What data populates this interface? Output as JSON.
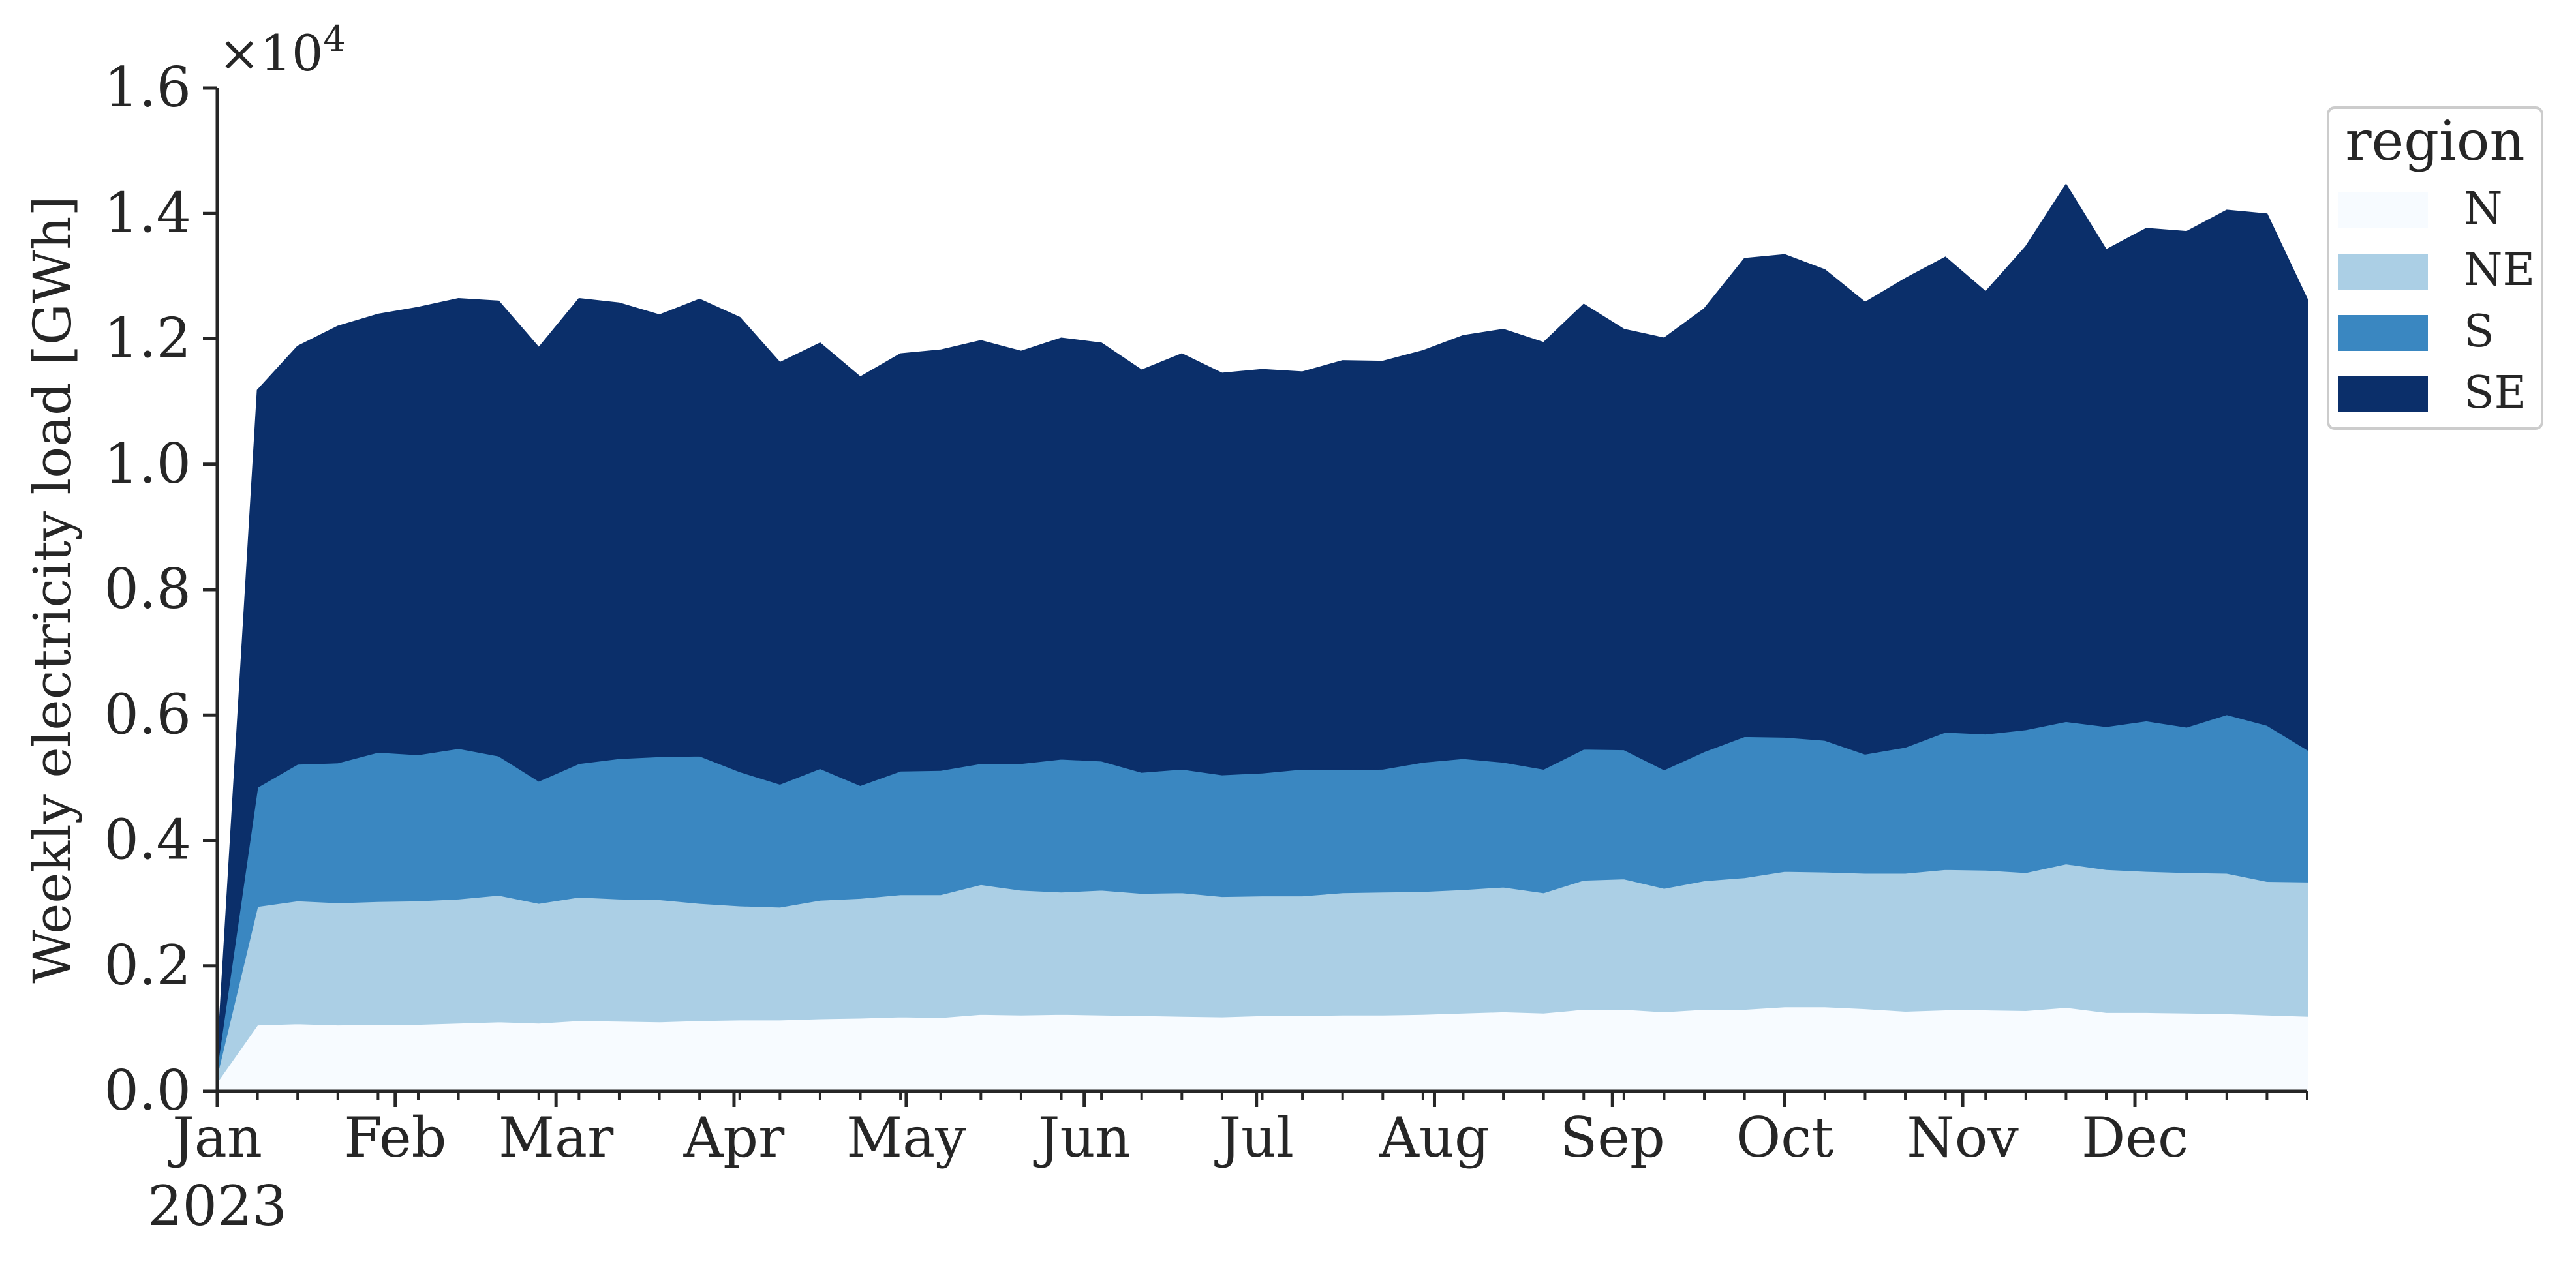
{
  "chart_data": {
    "type": "area",
    "stacked": true,
    "ylabel": "Weekly electricity load [GWh]",
    "y_multiplier": "×10",
    "y_multiplier_exponent": "4",
    "ylim": [
      0,
      1.6
    ],
    "yticks": [
      "0.0",
      "0.2",
      "0.4",
      "0.6",
      "0.8",
      "1.0",
      "1.2",
      "1.4",
      "1.6"
    ],
    "xlim": [
      "2023-01-01",
      "2023-12-31"
    ],
    "xtick_labels": [
      "Jan",
      "Feb",
      "Mar",
      "Apr",
      "May",
      "Jun",
      "Jul",
      "Aug",
      "Sep",
      "Oct",
      "Nov",
      "Dec"
    ],
    "xtick_year": "2023",
    "grid": false,
    "legend": {
      "title": "region",
      "position": "right, outside top"
    },
    "x": [
      "2023-01-01",
      "2023-01-08",
      "2023-01-15",
      "2023-01-22",
      "2023-01-29",
      "2023-02-05",
      "2023-02-12",
      "2023-02-19",
      "2023-02-26",
      "2023-03-05",
      "2023-03-12",
      "2023-03-19",
      "2023-03-26",
      "2023-04-02",
      "2023-04-09",
      "2023-04-16",
      "2023-04-23",
      "2023-04-30",
      "2023-05-07",
      "2023-05-14",
      "2023-05-21",
      "2023-05-28",
      "2023-06-04",
      "2023-06-11",
      "2023-06-18",
      "2023-06-25",
      "2023-07-02",
      "2023-07-09",
      "2023-07-16",
      "2023-07-23",
      "2023-07-30",
      "2023-08-06",
      "2023-08-13",
      "2023-08-20",
      "2023-08-27",
      "2023-09-03",
      "2023-09-10",
      "2023-09-17",
      "2023-09-24",
      "2023-10-01",
      "2023-10-08",
      "2023-10-15",
      "2023-10-22",
      "2023-10-29",
      "2023-11-05",
      "2023-11-12",
      "2023-11-19",
      "2023-11-26",
      "2023-12-03",
      "2023-12-10",
      "2023-12-17",
      "2023-12-24",
      "2023-12-31"
    ],
    "series": [
      {
        "name": "N",
        "color": "#f7fbff",
        "values": [
          0.015,
          0.106,
          0.108,
          0.106,
          0.107,
          0.107,
          0.109,
          0.111,
          0.109,
          0.113,
          0.112,
          0.111,
          0.113,
          0.114,
          0.114,
          0.116,
          0.117,
          0.119,
          0.118,
          0.123,
          0.122,
          0.123,
          0.122,
          0.121,
          0.12,
          0.119,
          0.121,
          0.121,
          0.122,
          0.122,
          0.123,
          0.125,
          0.127,
          0.125,
          0.131,
          0.131,
          0.127,
          0.131,
          0.131,
          0.135,
          0.135,
          0.132,
          0.128,
          0.13,
          0.13,
          0.129,
          0.134,
          0.126,
          0.126,
          0.125,
          0.124,
          0.122,
          0.12
        ]
      },
      {
        "name": "NE",
        "color": "#abcfe5",
        "values": [
          0.012,
          0.189,
          0.196,
          0.195,
          0.196,
          0.197,
          0.198,
          0.202,
          0.191,
          0.197,
          0.195,
          0.195,
          0.187,
          0.182,
          0.18,
          0.189,
          0.191,
          0.195,
          0.196,
          0.207,
          0.199,
          0.195,
          0.199,
          0.195,
          0.197,
          0.192,
          0.191,
          0.191,
          0.195,
          0.196,
          0.196,
          0.197,
          0.199,
          0.192,
          0.206,
          0.208,
          0.197,
          0.205,
          0.21,
          0.216,
          0.215,
          0.216,
          0.22,
          0.224,
          0.223,
          0.22,
          0.229,
          0.228,
          0.225,
          0.224,
          0.224,
          0.213,
          0.214
        ]
      },
      {
        "name": "S",
        "color": "#3a87c1",
        "values": [
          0.013,
          0.19,
          0.218,
          0.223,
          0.238,
          0.233,
          0.24,
          0.222,
          0.195,
          0.213,
          0.224,
          0.228,
          0.235,
          0.214,
          0.196,
          0.21,
          0.18,
          0.197,
          0.198,
          0.193,
          0.202,
          0.212,
          0.206,
          0.193,
          0.197,
          0.194,
          0.196,
          0.202,
          0.196,
          0.196,
          0.206,
          0.209,
          0.199,
          0.197,
          0.209,
          0.206,
          0.189,
          0.206,
          0.225,
          0.214,
          0.21,
          0.19,
          0.201,
          0.219,
          0.217,
          0.228,
          0.227,
          0.228,
          0.24,
          0.232,
          0.253,
          0.249,
          0.211
        ]
      },
      {
        "name": "SE",
        "color": "#0b2f6a",
        "values": [
          0.01,
          0.633,
          0.666,
          0.696,
          0.698,
          0.713,
          0.717,
          0.725,
          0.691,
          0.741,
          0.726,
          0.704,
          0.728,
          0.724,
          0.672,
          0.678,
          0.651,
          0.665,
          0.67,
          0.674,
          0.657,
          0.671,
          0.666,
          0.641,
          0.662,
          0.64,
          0.643,
          0.633,
          0.652,
          0.65,
          0.656,
          0.674,
          0.69,
          0.68,
          0.709,
          0.67,
          0.688,
          0.706,
          0.762,
          0.769,
          0.75,
          0.72,
          0.747,
          0.757,
          0.705,
          0.77,
          0.856,
          0.76,
          0.785,
          0.79,
          0.804,
          0.815,
          0.718
        ]
      }
    ]
  }
}
